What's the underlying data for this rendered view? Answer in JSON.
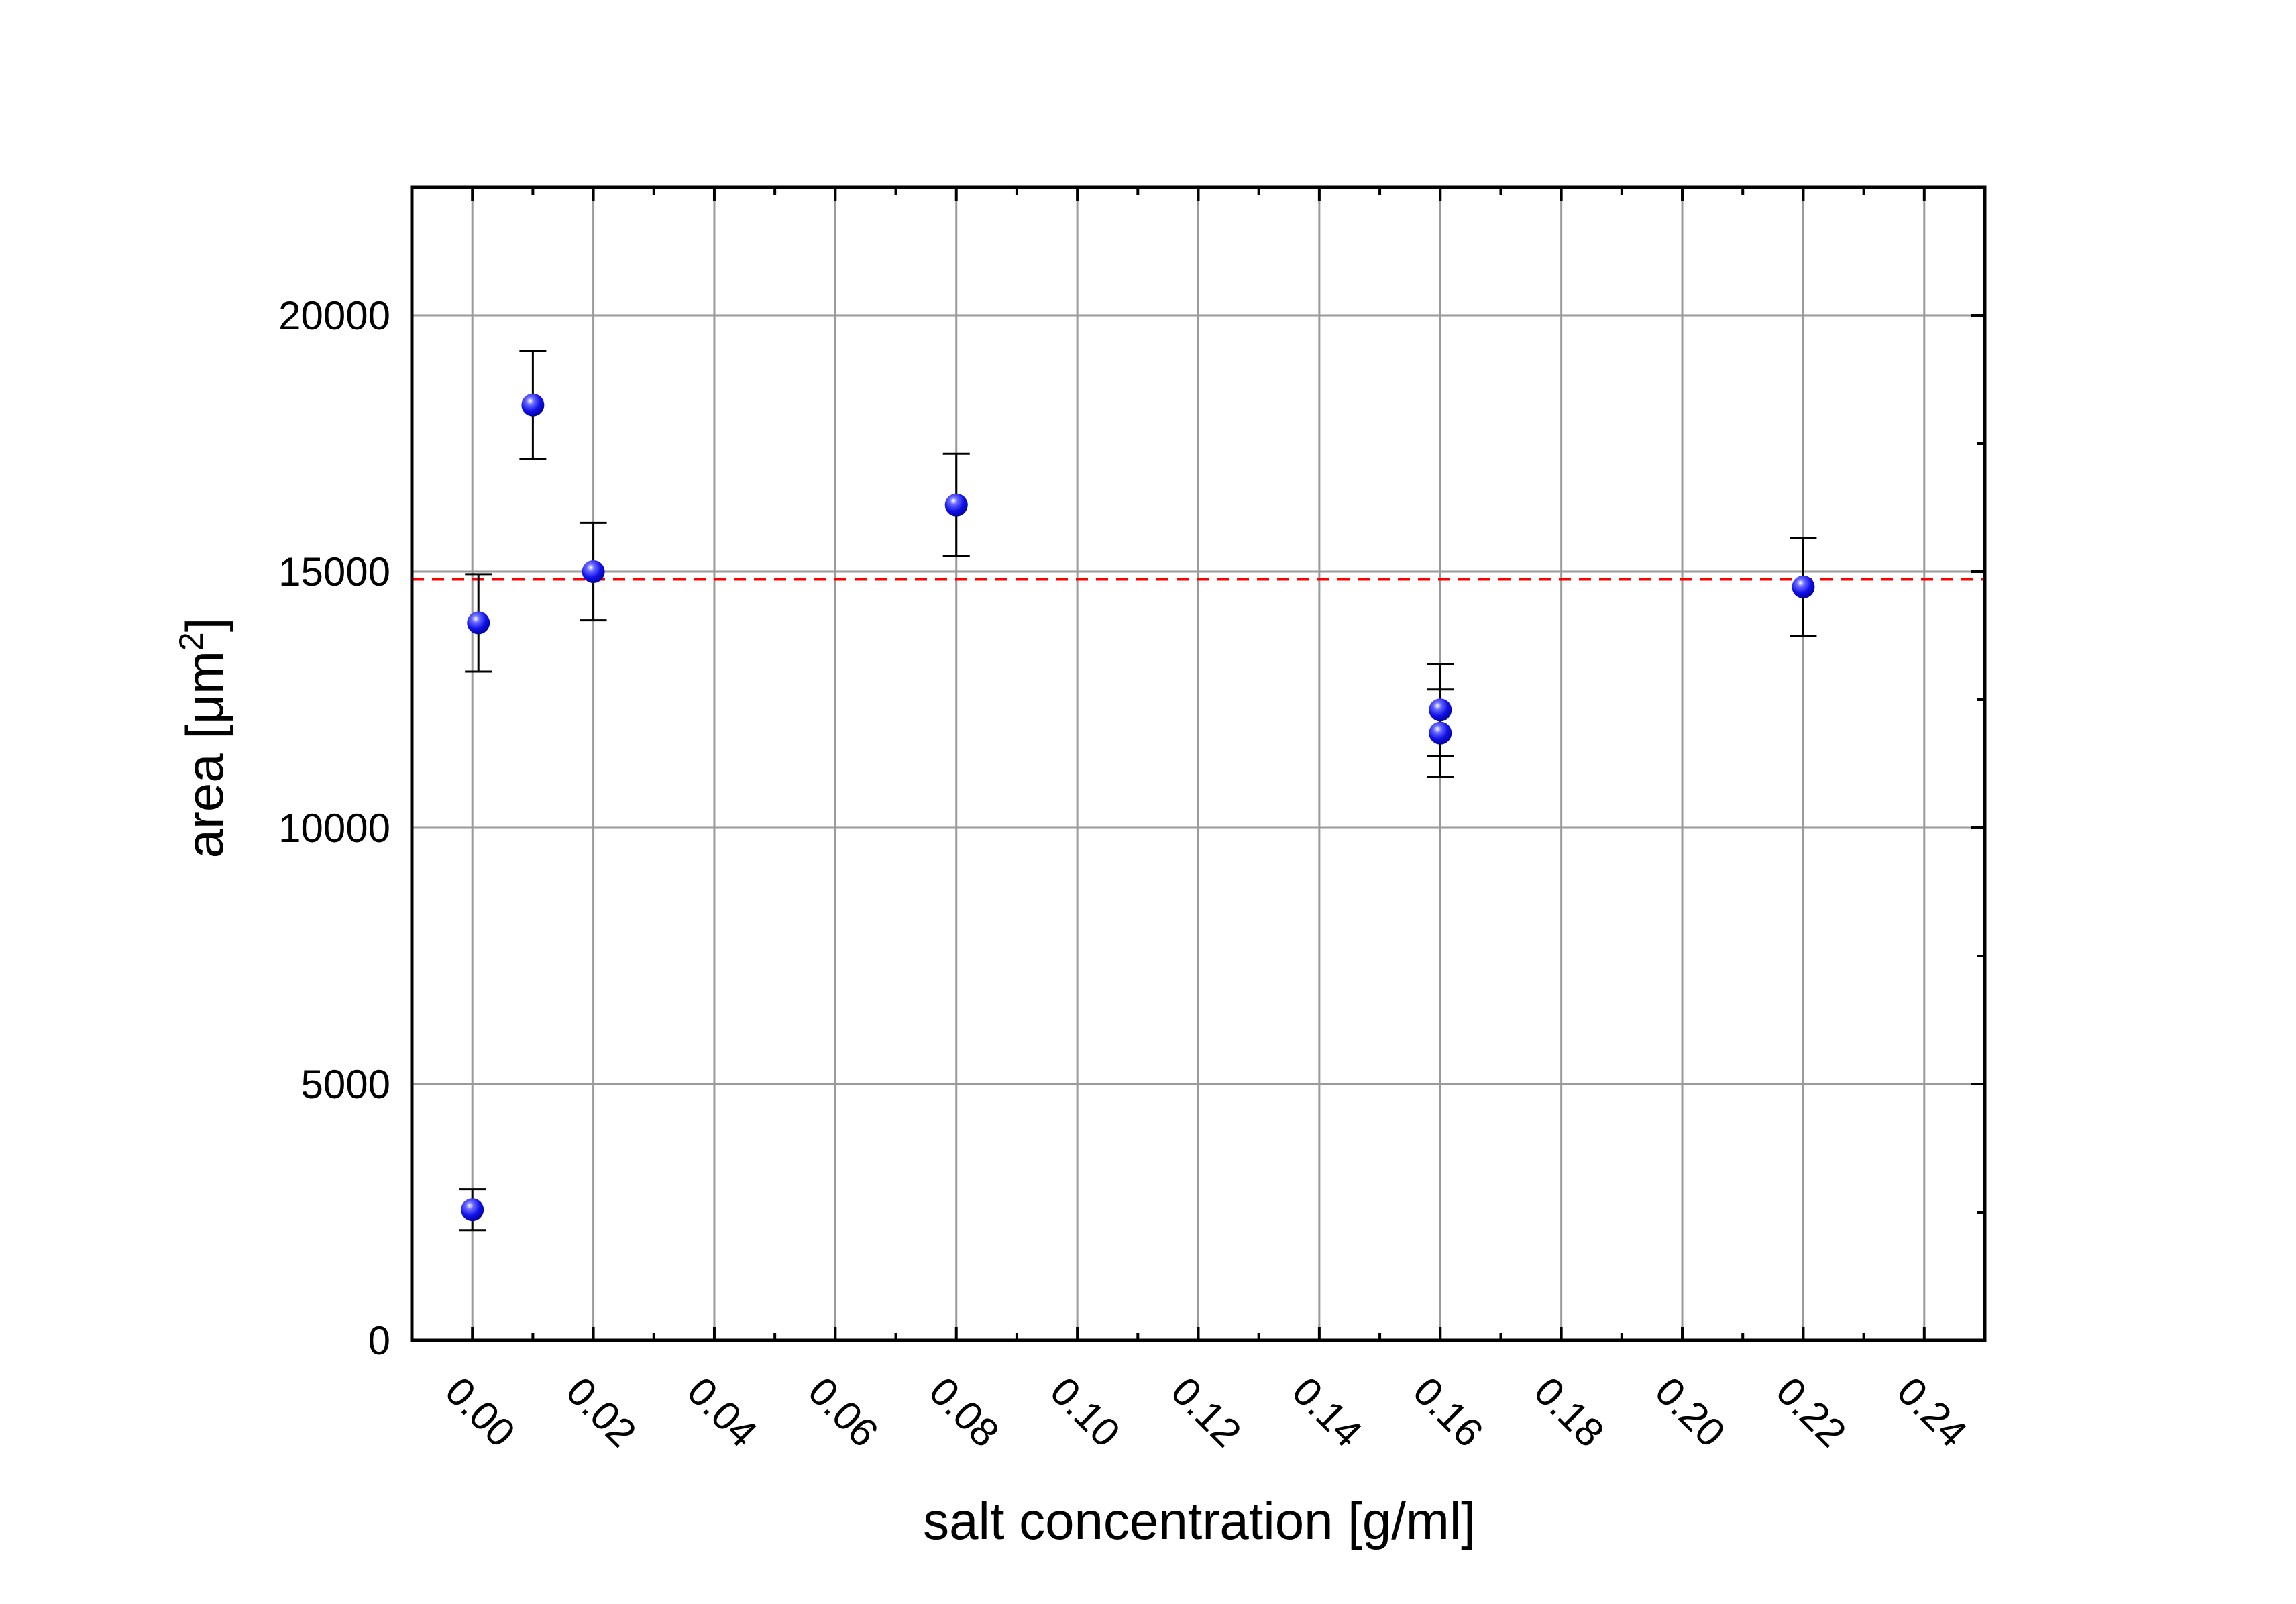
{
  "chart_data": {
    "type": "scatter",
    "title": "",
    "xlabel": "salt concentration [g/ml]",
    "ylabel_main": "area [μm",
    "ylabel_sup": "2",
    "ylabel_end": "]",
    "xlim": [
      -0.01,
      0.25
    ],
    "ylim": [
      0,
      22500
    ],
    "x_ticks": [
      0.0,
      0.02,
      0.04,
      0.06,
      0.08,
      0.1,
      0.12,
      0.14,
      0.16,
      0.18,
      0.2,
      0.22,
      0.24
    ],
    "x_tick_labels": [
      "0.00",
      "0.02",
      "0.04",
      "0.06",
      "0.08",
      "0.10",
      "0.12",
      "0.14",
      "0.16",
      "0.18",
      "0.20",
      "0.22",
      "0.24"
    ],
    "y_ticks": [
      0,
      5000,
      10000,
      15000,
      20000
    ],
    "y_tick_labels": [
      "0",
      "5000",
      "10000",
      "15000",
      "20000"
    ],
    "grid": true,
    "marker_color": "#1010e8",
    "reference_line": {
      "y": 14850,
      "color": "#ff0000",
      "style": "dashed"
    },
    "points": [
      {
        "x": 0.0,
        "y": 2550,
        "err": 400
      },
      {
        "x": 0.001,
        "y": 14000,
        "err": 950
      },
      {
        "x": 0.01,
        "y": 18250,
        "err": 1050
      },
      {
        "x": 0.02,
        "y": 15000,
        "err": 950
      },
      {
        "x": 0.08,
        "y": 16300,
        "err": 1000
      },
      {
        "x": 0.16,
        "y": 12300,
        "err": 900
      },
      {
        "x": 0.16,
        "y": 11850,
        "err": 850
      },
      {
        "x": 0.22,
        "y": 14700,
        "err": 950
      }
    ]
  }
}
